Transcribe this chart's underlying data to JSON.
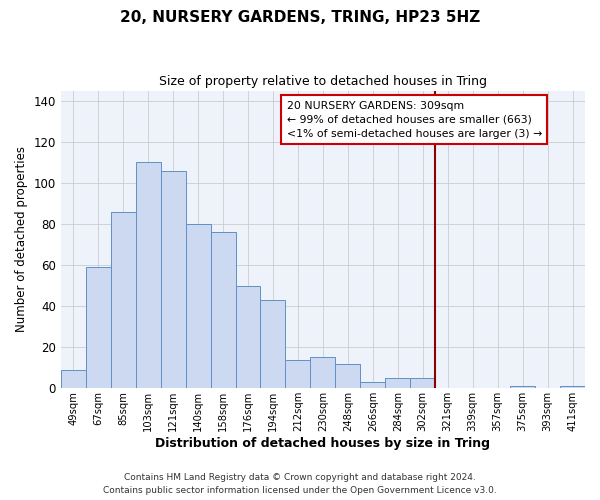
{
  "title": "20, NURSERY GARDENS, TRING, HP23 5HZ",
  "subtitle": "Size of property relative to detached houses in Tring",
  "xlabel": "Distribution of detached houses by size in Tring",
  "ylabel": "Number of detached properties",
  "bar_color": "#ccd9f0",
  "bar_edge_color": "#6090c8",
  "background_color": "#eef2fb",
  "grid_color": "#cccccc",
  "bin_labels": [
    "49sqm",
    "67sqm",
    "85sqm",
    "103sqm",
    "121sqm",
    "140sqm",
    "158sqm",
    "176sqm",
    "194sqm",
    "212sqm",
    "230sqm",
    "248sqm",
    "266sqm",
    "284sqm",
    "302sqm",
    "321sqm",
    "339sqm",
    "357sqm",
    "375sqm",
    "393sqm",
    "411sqm"
  ],
  "bar_values": [
    9,
    59,
    86,
    110,
    106,
    80,
    76,
    50,
    43,
    14,
    15,
    12,
    3,
    5,
    5,
    0,
    0,
    0,
    1,
    0,
    1
  ],
  "ylim": [
    0,
    145
  ],
  "yticks": [
    0,
    20,
    40,
    60,
    80,
    100,
    120,
    140
  ],
  "vline_color": "#8b0000",
  "annotation_title": "20 NURSERY GARDENS: 309sqm",
  "annotation_line1": "← 99% of detached houses are smaller (663)",
  "annotation_line2": "<1% of semi-detached houses are larger (3) →",
  "annotation_box_color": "#ffffff",
  "annotation_box_edge": "#cc0000",
  "footer1": "Contains HM Land Registry data © Crown copyright and database right 2024.",
  "footer2": "Contains public sector information licensed under the Open Government Licence v3.0."
}
